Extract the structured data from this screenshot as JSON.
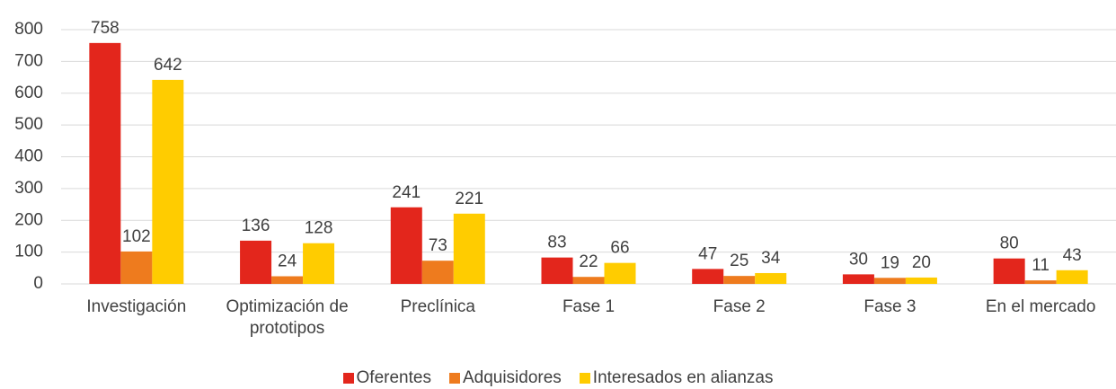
{
  "chart_data": {
    "type": "bar",
    "categories": [
      "Investigación",
      "Optimización de prototipos",
      "Preclínica",
      "Fase 1",
      "Fase 2",
      "Fase 3",
      "En el mercado"
    ],
    "series": [
      {
        "name": "Oferentes",
        "color": "#e3261c",
        "values": [
          758,
          136,
          241,
          83,
          47,
          30,
          80
        ]
      },
      {
        "name": "Adquisidores",
        "color": "#ee7b1e",
        "values": [
          102,
          24,
          73,
          22,
          25,
          19,
          11
        ]
      },
      {
        "name": "Interesados en alianzas",
        "color": "#ffcc00",
        "values": [
          642,
          128,
          221,
          66,
          34,
          20,
          43
        ]
      }
    ],
    "ylim": [
      0,
      800
    ],
    "yticks": [
      0,
      100,
      200,
      300,
      400,
      500,
      600,
      700,
      800
    ],
    "grid": true
  }
}
